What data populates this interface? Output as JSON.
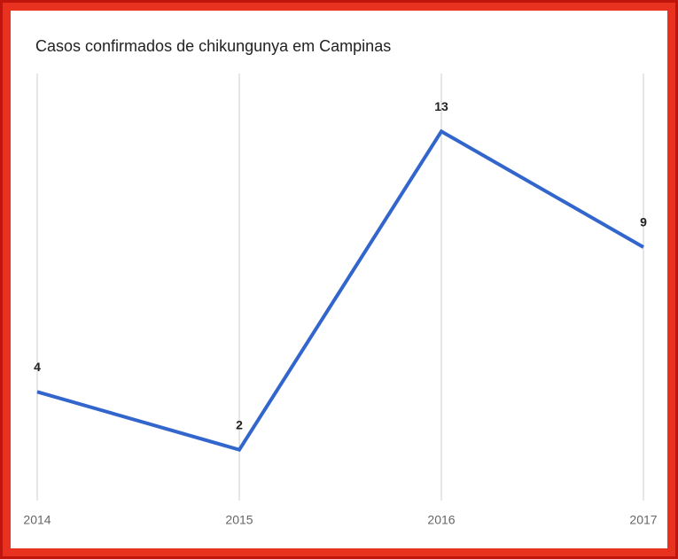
{
  "chart_data": {
    "type": "line",
    "title": "Casos confirmados de chikungunya em Campinas",
    "categories": [
      "2014",
      "2015",
      "2016",
      "2017"
    ],
    "values": [
      4,
      2,
      13,
      9
    ],
    "color": "#3366cc",
    "ylim": [
      0,
      15
    ],
    "grid": true
  }
}
